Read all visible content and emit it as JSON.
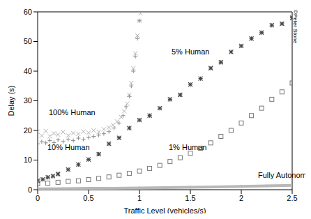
{
  "chart_data": {
    "type": "scatter",
    "x_label": "Traffic Level (vehicles/s)",
    "y_label": "Delay (s)",
    "annotations": [
      "©Peter Stone"
    ],
    "xlim": [
      0,
      2.5
    ],
    "xticks": [
      0,
      0.5,
      1,
      1.5,
      2,
      2.5
    ],
    "ylim": [
      0,
      60
    ],
    "yticks": [
      0,
      10,
      20,
      30,
      40,
      50,
      60
    ],
    "grid": false,
    "series": [
      {
        "name": "100% Human",
        "color": "#b0b0b0",
        "marker": "x",
        "x": [
          0,
          0.04,
          0.08,
          0.12,
          0.16,
          0.2,
          0.25,
          0.3,
          0.35,
          0.4,
          0.45,
          0.5,
          0.55,
          0.6,
          0.65,
          0.7,
          0.74,
          0.78,
          0.82,
          0.85,
          0.88,
          0.9,
          0.92,
          0.94,
          0.96,
          0.98,
          1.0,
          1.01
        ],
        "values": [
          19.5,
          18.2,
          19.8,
          18.0,
          19.0,
          18.6,
          19.4,
          18.3,
          19.1,
          18.8,
          19.6,
          19.2,
          20.0,
          19.5,
          20.4,
          21.0,
          21.8,
          23.0,
          24.5,
          26.5,
          29.0,
          32.0,
          36.0,
          41.0,
          46.0,
          52.0,
          57.0,
          59.5
        ]
      },
      {
        "name": "10% Human",
        "color": "#8c8c8c",
        "marker": "plus",
        "x": [
          0,
          0.04,
          0.08,
          0.12,
          0.16,
          0.2,
          0.25,
          0.3,
          0.35,
          0.4,
          0.45,
          0.5,
          0.55,
          0.6,
          0.65,
          0.7,
          0.75,
          0.8,
          0.84,
          0.87,
          0.9,
          0.92,
          0.94,
          0.96,
          0.98,
          1.0
        ],
        "values": [
          15.5,
          16.2,
          15.8,
          16.6,
          15.9,
          16.8,
          16.3,
          17.0,
          16.6,
          17.4,
          17.0,
          17.6,
          18.0,
          18.4,
          18.9,
          19.6,
          20.8,
          22.5,
          25.0,
          28.0,
          31.5,
          35.0,
          40.0,
          45.0,
          51.0,
          57.0
        ]
      },
      {
        "name": "5% Human",
        "color": "#444444",
        "marker": "asterisk",
        "x": [
          0,
          0.05,
          0.1,
          0.15,
          0.2,
          0.3,
          0.4,
          0.5,
          0.6,
          0.7,
          0.8,
          0.9,
          1.0,
          1.1,
          1.2,
          1.3,
          1.4,
          1.5,
          1.6,
          1.7,
          1.8,
          1.9,
          2.0,
          2.1,
          2.2,
          2.3,
          2.4,
          2.5
        ],
        "values": [
          3.0,
          3.5,
          4.2,
          4.6,
          5.3,
          6.8,
          8.5,
          10.2,
          12.0,
          15.5,
          17.5,
          20.8,
          23.5,
          25.0,
          27.5,
          30.5,
          32.0,
          35.5,
          37.5,
          41.0,
          43.0,
          46.5,
          48.5,
          51.0,
          53.0,
          55.5,
          56.0,
          58.0
        ]
      },
      {
        "name": "1% Human",
        "color": "#777777",
        "marker": "square",
        "x": [
          0,
          0.1,
          0.2,
          0.3,
          0.4,
          0.5,
          0.6,
          0.7,
          0.8,
          0.9,
          1.0,
          1.1,
          1.2,
          1.3,
          1.4,
          1.5,
          1.6,
          1.7,
          1.8,
          1.9,
          2.0,
          2.1,
          2.2,
          2.3,
          2.4,
          2.5
        ],
        "values": [
          2.0,
          2.2,
          2.5,
          2.8,
          3.0,
          3.4,
          3.8,
          4.3,
          4.9,
          5.5,
          6.3,
          7.2,
          8.2,
          9.5,
          10.8,
          12.3,
          14.0,
          15.8,
          18.0,
          20.0,
          22.5,
          25.0,
          27.5,
          30.5,
          33.0,
          36.0
        ]
      },
      {
        "name": "Fully Autonomous",
        "color": "#b8b8b8",
        "marker": "dot",
        "line_style": "solid",
        "x": [
          0,
          0.25,
          0.5,
          0.75,
          1.0,
          1.25,
          1.5,
          1.75,
          2.0,
          2.25,
          2.5
        ],
        "values": [
          0.3,
          0.35,
          0.45,
          0.5,
          0.6,
          0.7,
          0.8,
          0.95,
          1.1,
          1.3,
          1.5
        ]
      }
    ]
  }
}
